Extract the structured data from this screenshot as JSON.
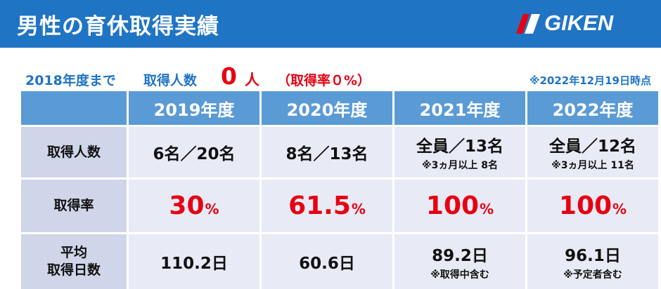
{
  "header": {
    "title": "男性の育休取得実績",
    "logo_text": "GIKEN",
    "colors": {
      "bar": "#1f74c4",
      "logo_mark": "#e60012"
    }
  },
  "summary": {
    "prefix": "2018年度まで",
    "label": "取得人数",
    "count": "0",
    "unit": "人",
    "rate": "（取得率０%）",
    "as_of": "※2022年12月19日時点"
  },
  "table": {
    "columns": [
      "2019年度",
      "2020年度",
      "2021年度",
      "2022年度"
    ],
    "rows": [
      {
        "label": "取得人数",
        "cells": [
          {
            "value": "6名／20名",
            "note": ""
          },
          {
            "value": "8名／13名",
            "note": ""
          },
          {
            "value": "全員／13名",
            "note": "※3ヵ月以上 8名"
          },
          {
            "value": "全員／12名",
            "note": "※3ヵ月以上 11名"
          }
        ]
      },
      {
        "label": "取得率",
        "cells": [
          {
            "value": "30",
            "unit": "%"
          },
          {
            "value": "61.5",
            "unit": "%"
          },
          {
            "value": "100",
            "unit": "%"
          },
          {
            "value": "100",
            "unit": "%"
          }
        ]
      },
      {
        "label_line1": "平均",
        "label_line2": "取得日数",
        "cells": [
          {
            "value": "110.2日",
            "note": ""
          },
          {
            "value": "60.6日",
            "note": ""
          },
          {
            "value": "89.2日",
            "note": "※取得中含む"
          },
          {
            "value": "96.1日",
            "note": "※予定者含む"
          }
        ]
      }
    ]
  },
  "colors": {
    "accent": "#e60012",
    "header_cell": "#5b9bd5",
    "label_cell": "#cfd6ea",
    "value_cell": "#e8ebf5"
  }
}
